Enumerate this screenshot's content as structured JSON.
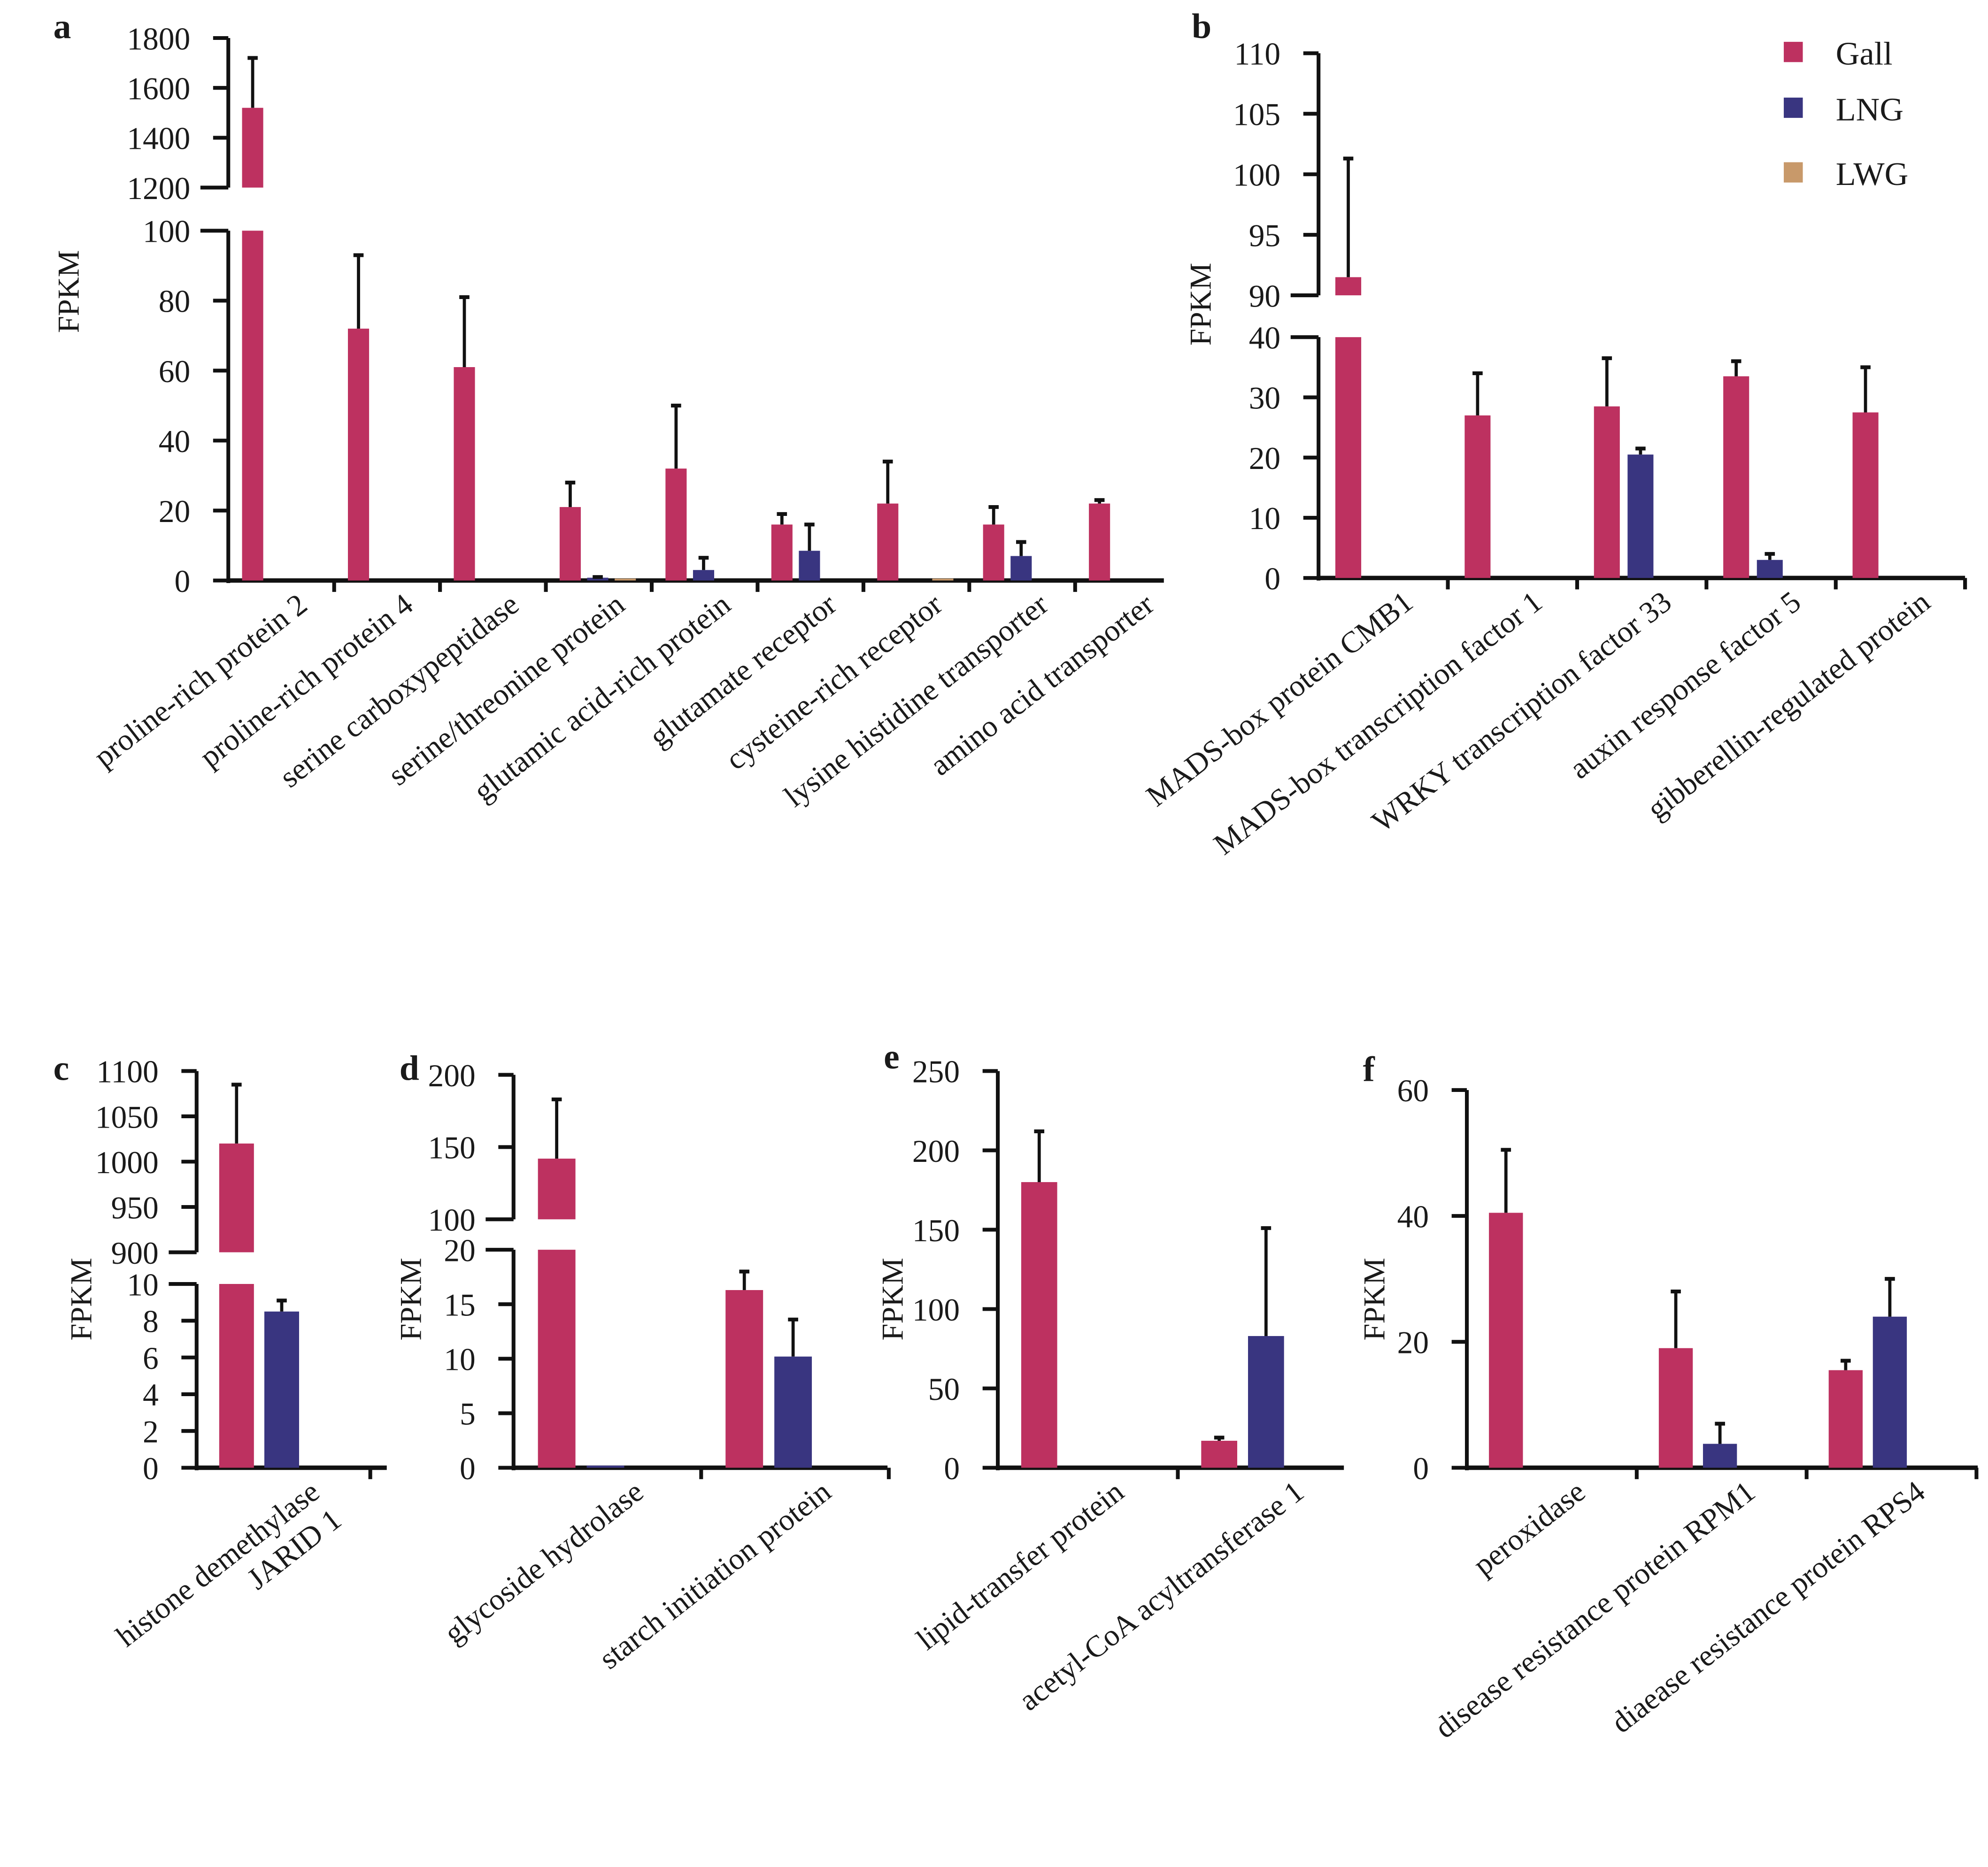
{
  "legend": [
    {
      "name": "Gall",
      "color": "#bd3160"
    },
    {
      "name": "LNG",
      "color": "#393580"
    },
    {
      "name": "LWG",
      "color": "#c8996a"
    }
  ],
  "chart_data": [
    {
      "panel": "a",
      "type": "bar",
      "ylabel": "FPKM",
      "y_segments": [
        {
          "ticks": [
            0,
            20,
            40,
            60,
            80,
            100
          ],
          "range": [
            0,
            100
          ]
        },
        {
          "ticks": [
            1200,
            1400,
            1600,
            1800
          ],
          "range": [
            1200,
            1800
          ]
        }
      ],
      "categories": [
        "proline-rich protein 2",
        "proline-rich protein 4",
        "serine carboxypeptidase",
        "serine/threonine protein",
        "glutamic acid-rich protein",
        "glutamate receptor",
        "cysteine-rich receptor",
        "lysine histidine transporter",
        "amino acid transporter"
      ],
      "series": [
        {
          "name": "Gall",
          "values": [
            1520,
            72,
            61,
            21,
            32,
            16,
            22,
            16,
            22
          ],
          "error_upper": [
            1720,
            93,
            81,
            28,
            50,
            19,
            34,
            21,
            23
          ]
        },
        {
          "name": "LNG",
          "values": [
            0,
            0,
            0,
            0.8,
            3,
            8.5,
            0,
            7,
            0
          ],
          "error_upper": [
            0,
            0,
            0,
            1,
            6.5,
            16,
            0,
            11,
            0
          ]
        },
        {
          "name": "LWG",
          "values": [
            0,
            0,
            0,
            0.3,
            0,
            0,
            0.3,
            0,
            0
          ],
          "error_upper": [
            0,
            0,
            0,
            0,
            0,
            0,
            0,
            0,
            0
          ]
        }
      ]
    },
    {
      "panel": "b",
      "type": "bar",
      "ylabel": "FPKM",
      "y_segments": [
        {
          "ticks": [
            0,
            10,
            20,
            30,
            40
          ],
          "range": [
            0,
            40
          ]
        },
        {
          "ticks": [
            90,
            95,
            100,
            105,
            110
          ],
          "range": [
            90,
            110
          ]
        }
      ],
      "categories": [
        "MADS-box protein CMB1",
        "MADS-box transcription factor 1",
        "WRKY transcription factor 33",
        "auxin response factor 5",
        "gibberellin-regulated protein"
      ],
      "series": [
        {
          "name": "Gall",
          "values": [
            91.5,
            27,
            28.5,
            33.5,
            27.5
          ],
          "error_upper": [
            101.3,
            34,
            36.5,
            36,
            35
          ]
        },
        {
          "name": "LNG",
          "values": [
            0,
            0,
            20.5,
            3,
            0
          ],
          "error_upper": [
            0,
            0,
            21.5,
            4,
            0
          ]
        },
        {
          "name": "LWG",
          "values": [
            0,
            0,
            0,
            0,
            0
          ],
          "error_upper": [
            0,
            0,
            0,
            0,
            0
          ]
        }
      ]
    },
    {
      "panel": "c",
      "type": "bar",
      "ylabel": "FPKM",
      "y_segments": [
        {
          "ticks": [
            0,
            2,
            4,
            6,
            8,
            10
          ],
          "range": [
            0,
            10
          ]
        },
        {
          "ticks": [
            900,
            950,
            1000,
            1050,
            1100
          ],
          "range": [
            900,
            1100
          ]
        }
      ],
      "categories": [
        "histone demethylase\nJARID 1"
      ],
      "series": [
        {
          "name": "Gall",
          "values": [
            1020
          ],
          "error_upper": [
            1085
          ]
        },
        {
          "name": "LNG",
          "values": [
            8.5
          ],
          "error_upper": [
            9.1
          ]
        },
        {
          "name": "LWG",
          "values": [
            0
          ],
          "error_upper": [
            0
          ]
        }
      ]
    },
    {
      "panel": "d",
      "type": "bar",
      "ylabel": "FPKM",
      "y_segments": [
        {
          "ticks": [
            0,
            5,
            10,
            15,
            20
          ],
          "range": [
            0,
            20
          ]
        },
        {
          "ticks": [
            100,
            150,
            200
          ],
          "range": [
            100,
            200
          ]
        }
      ],
      "categories": [
        "glycoside hydrolase",
        "starch initiation protein"
      ],
      "series": [
        {
          "name": "Gall",
          "values": [
            142,
            16.3
          ],
          "error_upper": [
            183,
            18
          ]
        },
        {
          "name": "LNG",
          "values": [
            0.2,
            10.2
          ],
          "error_upper": [
            0,
            13.6
          ]
        },
        {
          "name": "LWG",
          "values": [
            0,
            0
          ],
          "error_upper": [
            0,
            0
          ]
        }
      ]
    },
    {
      "panel": "e",
      "type": "bar",
      "ylabel": "FPKM",
      "y_segments": [
        {
          "ticks": [
            0,
            50,
            100,
            150,
            200,
            250
          ],
          "range": [
            0,
            250
          ]
        }
      ],
      "categories": [
        "lipid-transfer protein",
        "acetyl-CoA acyltransferase 1"
      ],
      "series": [
        {
          "name": "Gall",
          "values": [
            180,
            17
          ],
          "error_upper": [
            212,
            19
          ]
        },
        {
          "name": "LNG",
          "values": [
            0,
            83
          ],
          "error_upper": [
            0,
            151
          ]
        },
        {
          "name": "LWG",
          "values": [
            0,
            0
          ],
          "error_upper": [
            0,
            0
          ]
        }
      ]
    },
    {
      "panel": "f",
      "type": "bar",
      "ylabel": "FPKM",
      "y_segments": [
        {
          "ticks": [
            0,
            20,
            40,
            60
          ],
          "range": [
            0,
            60
          ]
        }
      ],
      "categories": [
        "peroxidase",
        "disease resistance protein RPM1",
        "diaease resistance protein RPS4"
      ],
      "series": [
        {
          "name": "Gall",
          "values": [
            40.5,
            19,
            15.5
          ],
          "error_upper": [
            50.5,
            28,
            17
          ]
        },
        {
          "name": "LNG",
          "values": [
            0,
            3.8,
            24
          ],
          "error_upper": [
            0,
            7,
            30
          ]
        },
        {
          "name": "LWG",
          "values": [
            0,
            0,
            0
          ],
          "error_upper": [
            0,
            0,
            0
          ]
        }
      ]
    }
  ]
}
